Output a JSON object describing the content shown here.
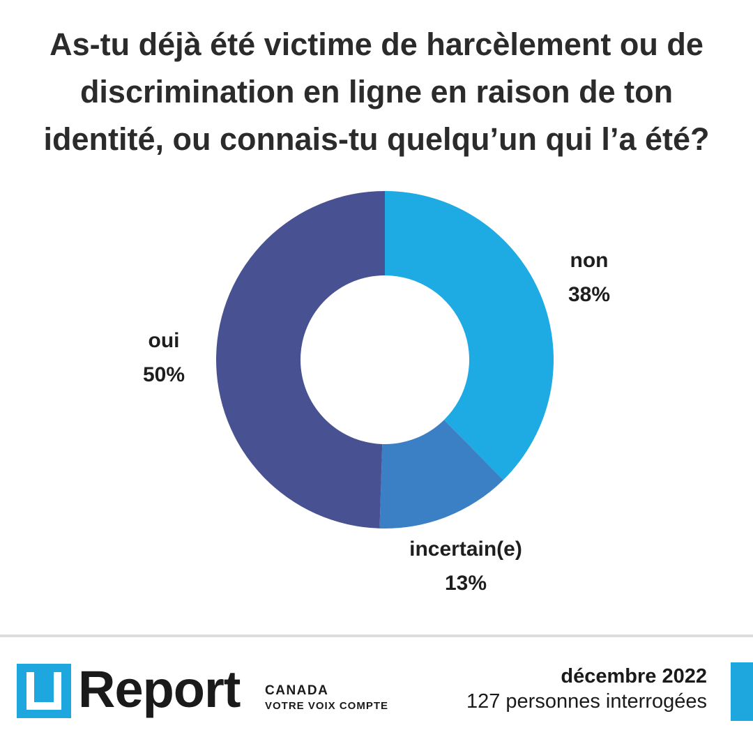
{
  "title_lines": [
    "As-tu déjà été victime de harcèlement ou de",
    "discrimination en ligne en raison de ton",
    "identité, ou connais-tu quelqu’un qui l’a été?"
  ],
  "chart_data": {
    "type": "pie",
    "donut": true,
    "title": "As-tu déjà été victime de harcèlement ou de discrimination en ligne en raison de ton identité, ou connais-tu quelqu’un qui l’a été?",
    "slices": [
      {
        "label": "non",
        "value": 38,
        "value_label": "38%",
        "color": "#1eabe3"
      },
      {
        "label": "incertain(e)",
        "value": 13,
        "value_label": "13%",
        "color": "#3b7fc4"
      },
      {
        "label": "oui",
        "value": 50,
        "value_label": "50%",
        "color": "#485292"
      }
    ]
  },
  "footer": {
    "brand": "Report",
    "country": "CANADA",
    "tagline": "VOTRE VOIX COMPTE",
    "date": "décembre 2022",
    "respondents": "127 personnes interrogées"
  },
  "colors": {
    "brand_blue": "#1ea7df",
    "divider": "#dcdcdc"
  },
  "icons": {
    "logo": "u-report-logo-icon"
  }
}
